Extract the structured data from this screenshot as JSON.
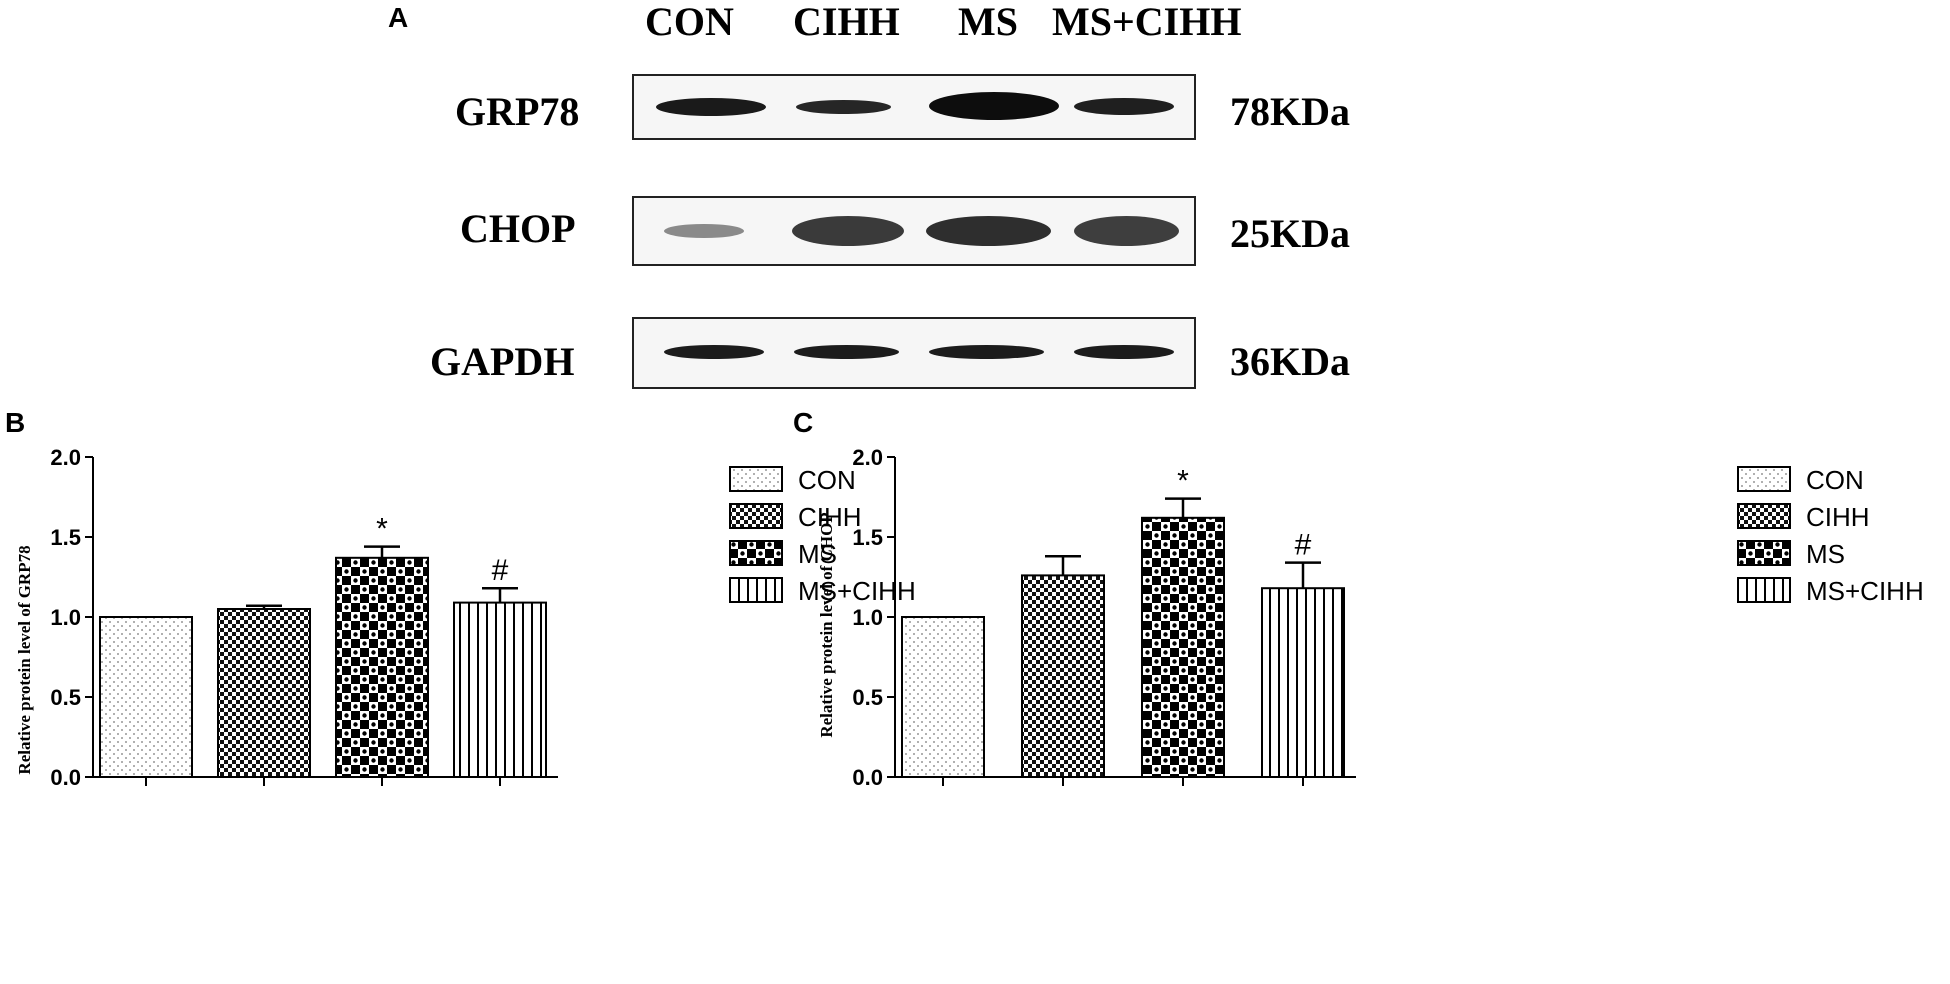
{
  "panel_a": {
    "letter": "A",
    "lanes": [
      "CON",
      "CIHH",
      "MS",
      "MS+CIHH"
    ],
    "blots": [
      {
        "protein": "GRP78",
        "size": "78KDa"
      },
      {
        "protein": "CHOP",
        "size": "25KDa"
      },
      {
        "protein": "GAPDH",
        "size": "36KDa"
      }
    ]
  },
  "legend": {
    "entries": [
      "CON",
      "CIHH",
      "MS",
      "MS+CIHH"
    ],
    "patterns": [
      "dots",
      "fine-checker",
      "checker",
      "vertical-lines"
    ]
  },
  "chart_data": [
    {
      "panel": "B",
      "type": "bar",
      "categories": [
        "CON",
        "CIHH",
        "MS",
        "MS+CIHH"
      ],
      "values": [
        1.0,
        1.05,
        1.37,
        1.09
      ],
      "errors": [
        0.0,
        0.02,
        0.07,
        0.09
      ],
      "annotations": [
        "",
        "",
        "*",
        "#"
      ],
      "ylabel": "Relative protein level of   GRP78",
      "ylim": [
        0,
        2.0
      ],
      "yticks": [
        "0.0",
        "0.5",
        "1.0",
        "1.5",
        "2.0"
      ],
      "legend_position": "right"
    },
    {
      "panel": "C",
      "type": "bar",
      "categories": [
        "CON",
        "CIHH",
        "MS",
        "MS+CIHH"
      ],
      "values": [
        1.0,
        1.26,
        1.62,
        1.18
      ],
      "errors": [
        0.0,
        0.12,
        0.12,
        0.16
      ],
      "annotations": [
        "",
        "",
        "*",
        "#"
      ],
      "ylabel": "Relative protein level of CHOP",
      "ylim": [
        0,
        2.0
      ],
      "yticks": [
        "0.0",
        "0.5",
        "1.0",
        "1.5",
        "2.0"
      ],
      "legend_position": "right"
    }
  ]
}
